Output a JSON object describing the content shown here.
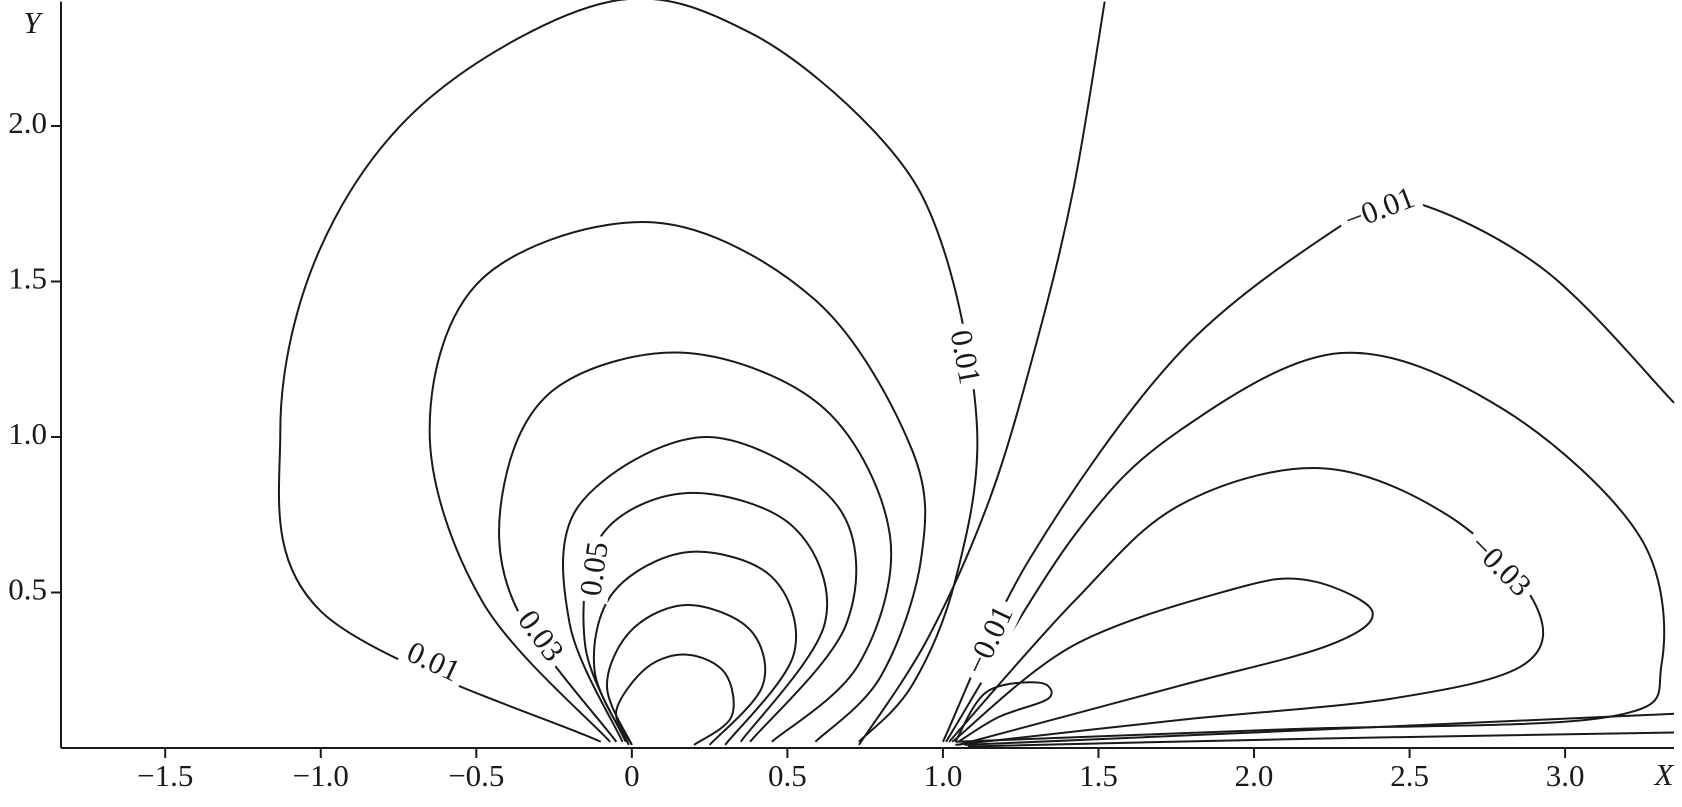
{
  "chart_data": {
    "type": "contour",
    "xlabel": "X",
    "ylabel": "Y",
    "xlim": [
      -1.835,
      3.35
    ],
    "ylim": [
      0,
      2.4
    ],
    "xticks": [
      {
        "value": -1.5,
        "label": "−1.5"
      },
      {
        "value": -1.0,
        "label": "−1.0"
      },
      {
        "value": -0.5,
        "label": "−0.5"
      },
      0,
      0.5,
      {
        "value": 1.0,
        "label": "1.0"
      },
      1.5,
      {
        "value": 2.0,
        "label": "2.0"
      },
      2.5,
      {
        "value": 3.0,
        "label": "3.0"
      }
    ],
    "yticks": [
      0.5,
      {
        "value": 1.0,
        "label": "1.0"
      },
      1.5,
      {
        "value": 2.0,
        "label": "2.0"
      }
    ],
    "color": "#1a1a1a",
    "contours": [
      {
        "level": 0.01,
        "points": [
          [
            -0.1,
            0.02
          ],
          [
            -1.0,
            0.44
          ],
          [
            -1.13,
            1.02
          ],
          [
            -1.0,
            1.61
          ],
          [
            -0.65,
            2.09
          ],
          [
            -0.07,
            2.4
          ],
          [
            0.38,
            2.3
          ],
          [
            0.8,
            1.96
          ],
          [
            1.0,
            1.61
          ],
          [
            1.11,
            1.02
          ],
          [
            1.04,
            0.54
          ],
          [
            0.9,
            0.2
          ],
          [
            0.73,
            0.02
          ]
        ]
      },
      {
        "points": [
          [
            -0.07,
            0.02
          ],
          [
            -0.48,
            0.47
          ],
          [
            -0.65,
            1.02
          ],
          [
            -0.48,
            1.51
          ],
          [
            0.07,
            1.69
          ],
          [
            0.59,
            1.44
          ],
          [
            0.9,
            0.96
          ],
          [
            0.93,
            0.61
          ],
          [
            0.8,
            0.23
          ],
          [
            0.59,
            0.02
          ]
        ]
      },
      {
        "level": 0.03,
        "points": [
          [
            -0.05,
            0.02
          ],
          [
            -0.38,
            0.47
          ],
          [
            -0.41,
            0.85
          ],
          [
            -0.24,
            1.16
          ],
          [
            0.18,
            1.27
          ],
          [
            0.62,
            1.09
          ],
          [
            0.83,
            0.68
          ],
          [
            0.73,
            0.27
          ],
          [
            0.45,
            0.02
          ]
        ]
      },
      {
        "points": [
          [
            -0.03,
            0.02
          ],
          [
            -0.2,
            0.4
          ],
          [
            -0.17,
            0.78
          ],
          [
            0.24,
            1.0
          ],
          [
            0.66,
            0.78
          ],
          [
            0.69,
            0.4
          ],
          [
            0.38,
            0.02
          ]
        ]
      },
      {
        "level": 0.05,
        "points": [
          [
            -0.02,
            0.02
          ],
          [
            -0.15,
            0.33
          ],
          [
            -0.1,
            0.68
          ],
          [
            0.18,
            0.82
          ],
          [
            0.52,
            0.71
          ],
          [
            0.62,
            0.4
          ],
          [
            0.35,
            0.02
          ]
        ]
      },
      {
        "points": [
          [
            -0.01,
            0.01
          ],
          [
            -0.12,
            0.25
          ],
          [
            -0.06,
            0.5
          ],
          [
            0.18,
            0.63
          ],
          [
            0.45,
            0.55
          ],
          [
            0.52,
            0.3
          ],
          [
            0.3,
            0.01
          ]
        ]
      },
      {
        "points": [
          [
            0.0,
            0.01
          ],
          [
            -0.08,
            0.2
          ],
          [
            0.0,
            0.38
          ],
          [
            0.18,
            0.46
          ],
          [
            0.38,
            0.38
          ],
          [
            0.42,
            0.2
          ],
          [
            0.25,
            0.01
          ]
        ]
      },
      {
        "points": [
          [
            0.0,
            0.01
          ],
          [
            -0.05,
            0.12
          ],
          [
            0.05,
            0.26
          ],
          [
            0.18,
            0.3
          ],
          [
            0.3,
            0.24
          ],
          [
            0.32,
            0.1
          ],
          [
            0.2,
            0.01
          ]
        ]
      },
      {
        "points": [
          [
            0.73,
            0.01
          ],
          [
            0.95,
            0.35
          ],
          [
            1.15,
            0.8
          ],
          [
            1.3,
            1.3
          ],
          [
            1.42,
            1.8
          ],
          [
            1.52,
            2.4
          ]
        ]
      },
      {
        "level": -0.01,
        "label": "−0.01",
        "points": [
          [
            1.0,
            0.02
          ],
          [
            1.28,
            0.61
          ],
          [
            1.76,
            1.27
          ],
          [
            2.28,
            1.68
          ],
          [
            2.49,
            1.76
          ],
          [
            2.93,
            1.54
          ],
          [
            3.35,
            1.11
          ]
        ]
      },
      {
        "points": [
          [
            1.01,
            0.02
          ],
          [
            1.42,
            0.68
          ],
          [
            1.76,
            1.02
          ],
          [
            2.28,
            1.27
          ],
          [
            2.8,
            1.09
          ],
          [
            3.24,
            0.68
          ],
          [
            3.31,
            0.27
          ],
          [
            3.14,
            0.1
          ],
          [
            2.1,
            0.06
          ],
          [
            1.04,
            0.02
          ]
        ]
      },
      {
        "level": -0.03,
        "label": "−0.03",
        "points": [
          [
            1.02,
            0.02
          ],
          [
            1.42,
            0.47
          ],
          [
            1.76,
            0.78
          ],
          [
            2.21,
            0.9
          ],
          [
            2.62,
            0.75
          ],
          [
            2.9,
            0.47
          ],
          [
            2.87,
            0.27
          ],
          [
            2.45,
            0.16
          ],
          [
            1.76,
            0.09
          ],
          [
            1.04,
            0.01
          ]
        ]
      },
      {
        "points": [
          [
            1.03,
            0.02
          ],
          [
            1.42,
            0.33
          ],
          [
            1.93,
            0.51
          ],
          [
            2.17,
            0.54
          ],
          [
            2.38,
            0.44
          ],
          [
            2.24,
            0.33
          ],
          [
            1.76,
            0.2
          ],
          [
            1.05,
            0.01
          ]
        ]
      },
      {
        "points": [
          [
            1.04,
            0.02
          ],
          [
            1.14,
            0.18
          ],
          [
            1.31,
            0.21
          ],
          [
            1.34,
            0.16
          ],
          [
            1.18,
            0.1
          ],
          [
            1.05,
            0.02
          ]
        ]
      },
      {
        "points": [
          [
            1.07,
            0.01
          ],
          [
            2.0,
            0.05
          ],
          [
            3.35,
            0.11
          ]
        ]
      },
      {
        "points": [
          [
            1.08,
            0.005
          ],
          [
            2.2,
            0.03
          ],
          [
            3.35,
            0.05
          ]
        ]
      }
    ]
  }
}
